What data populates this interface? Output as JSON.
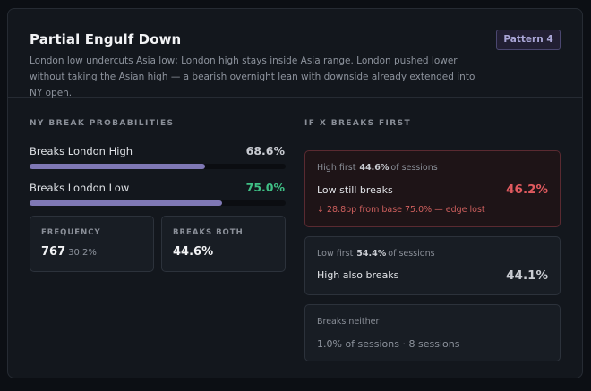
{
  "pattern": {
    "title": "Partial Engulf Down",
    "badge": "Pattern 4",
    "description": "London low undercuts Asia low; London high stays inside Asia range. London pushed lower without taking the Asian high — a bearish overnight lean with downside already extended into NY open."
  },
  "probabilities": {
    "section_label": "NY BREAK PROBABILITIES",
    "rows": [
      {
        "label": "Breaks London High",
        "value": "68.6%",
        "fraction": 0.686,
        "value_color": "#c9ccd2"
      },
      {
        "label": "Breaks London Low",
        "value": "75.0%",
        "fraction": 0.75,
        "value_color": "#3fbf85"
      }
    ],
    "frequency": {
      "label": "FREQUENCY",
      "count": "767",
      "pct": "30.2%"
    },
    "breaks_both": {
      "label": "BREAKS BOTH",
      "value": "44.6%"
    }
  },
  "if_first": {
    "section_label": "IF X BREAKS FIRST",
    "high_first": {
      "prefix": "High first",
      "share": "44.6%",
      "suffix": "of sessions",
      "text": "Low still breaks",
      "pct": "46.2%",
      "pct_color": "#e05a5f",
      "note": "↓ 28.8pp from base 75.0% — edge lost"
    },
    "low_first": {
      "prefix": "Low first",
      "share": "54.4%",
      "suffix": "of sessions",
      "text": "High also breaks",
      "pct": "44.1%",
      "pct_color": "#c9ccd2"
    },
    "neither": {
      "label": "Breaks neither",
      "text": "1.0% of sessions · 8 sessions"
    }
  },
  "colors": {
    "bar_fill": "#7f78b5",
    "accent_red": "#e05a5f",
    "accent_green": "#3fbf85"
  }
}
